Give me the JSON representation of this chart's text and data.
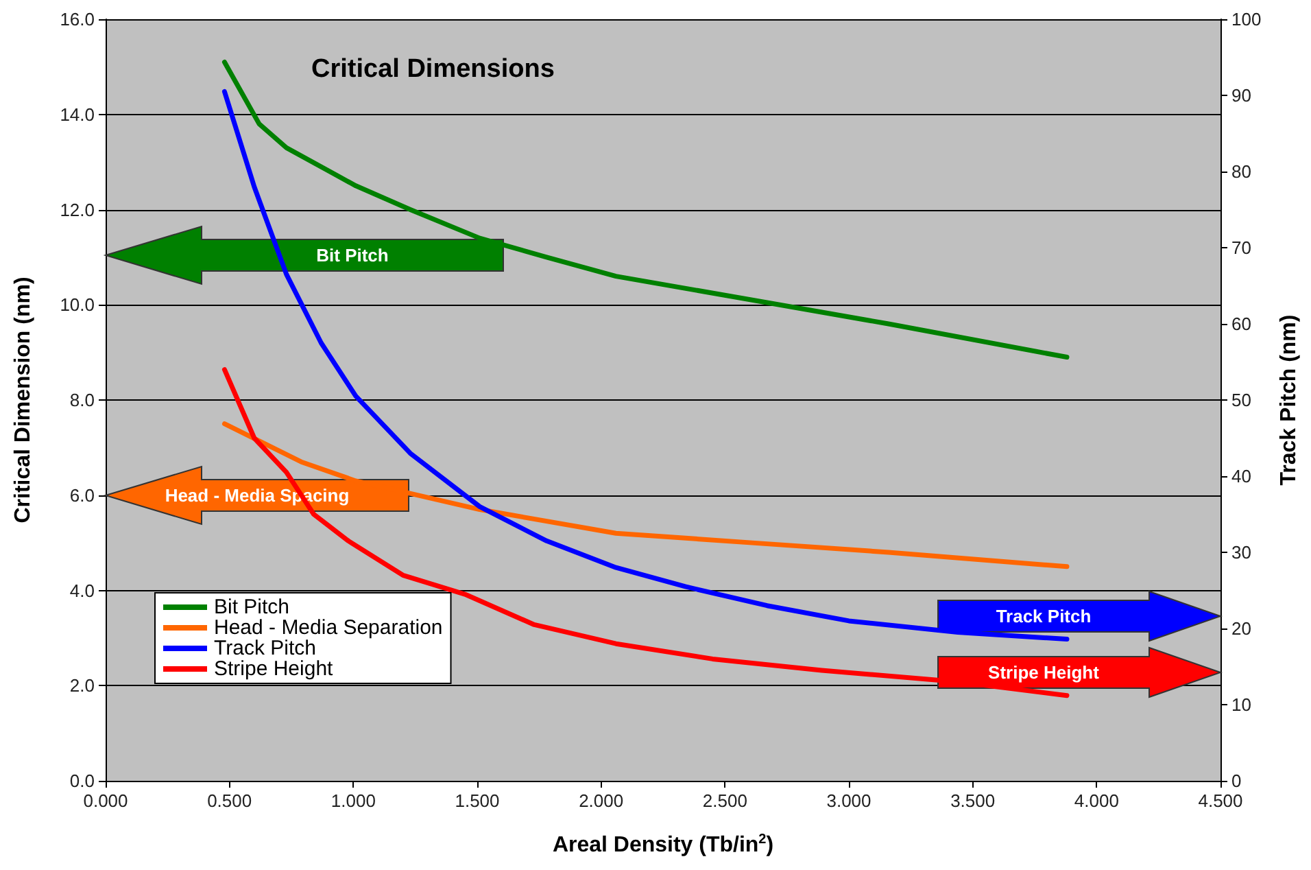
{
  "chart_data": {
    "type": "line",
    "title": "Critical Dimensions",
    "xlabel": "Areal Density (Tb/in$^{2}$)",
    "ylabel": "Critical Dimension (nm)",
    "y2label": "Track Pitch (nm)",
    "xlim": [
      0,
      4.5
    ],
    "xticks": [
      {
        "value": 0,
        "label": "0.000"
      },
      {
        "value": 0.5,
        "label": "0.500"
      },
      {
        "value": 1,
        "label": "1.000"
      },
      {
        "value": 1.5,
        "label": "1.500"
      },
      {
        "value": 2,
        "label": "2.000"
      },
      {
        "value": 2.5,
        "label": "2.500"
      },
      {
        "value": 3,
        "label": "3.000"
      },
      {
        "value": 3.5,
        "label": "3.500"
      },
      {
        "value": 4,
        "label": "4.000"
      },
      {
        "value": 4.5,
        "label": "4.500"
      }
    ],
    "ylim": [
      0,
      16
    ],
    "yticks": [
      {
        "value": 0,
        "label": "0.0"
      },
      {
        "value": 2,
        "label": "2.0"
      },
      {
        "value": 4,
        "label": "4.0"
      },
      {
        "value": 6,
        "label": "6.0"
      },
      {
        "value": 8,
        "label": "8.0"
      },
      {
        "value": 10,
        "label": "10.0"
      },
      {
        "value": 12,
        "label": "12.0"
      },
      {
        "value": 14,
        "label": "14.0"
      },
      {
        "value": 16,
        "label": "16.0"
      }
    ],
    "y2lim": [
      0,
      100
    ],
    "y2ticks": [
      0,
      10,
      20,
      30,
      40,
      50,
      60,
      70,
      80,
      90,
      100
    ],
    "grid": "y",
    "legend": "bottom left",
    "marker": "none",
    "line_style": "solid",
    "annotations": [
      "Bit Pitch",
      "Head - Media Spacing",
      "Track Pitch",
      "Stripe Height"
    ],
    "series": [
      {
        "name": "Bit Pitch",
        "color": "#008000",
        "x": [
          0.48,
          0.62,
          0.73,
          1.01,
          1.23,
          1.51,
          1.78,
          2.06,
          2.61,
          3.16,
          3.88
        ],
        "values": [
          15.1,
          13.8,
          13.3,
          12.5,
          12.0,
          11.4,
          11.0,
          10.6,
          10.1,
          9.6,
          8.9
        ]
      },
      {
        "name": "Head - Media Separation",
        "color": "#ff6600",
        "x": [
          0.48,
          0.79,
          1.01,
          1.51,
          2.06,
          2.61,
          3.16,
          3.88
        ],
        "values": [
          7.5,
          6.7,
          6.3,
          5.7,
          5.2,
          5.0,
          4.8,
          4.5
        ]
      },
      {
        "name": "Track Pitch",
        "color": "#0000ff",
        "axis": "y2",
        "x": [
          0.48,
          0.6,
          0.73,
          0.87,
          1.01,
          1.23,
          1.51,
          1.78,
          2.06,
          2.34,
          2.67,
          3.0,
          3.44,
          3.88
        ],
        "values": [
          90.5,
          78,
          66.5,
          57.5,
          50.5,
          43,
          36,
          31.5,
          28,
          25.5,
          23,
          21,
          19.5,
          18.6
        ]
      },
      {
        "name": "Stripe Height",
        "color": "#ff0000",
        "axis": "y2",
        "x": [
          0.48,
          0.6,
          0.73,
          0.84,
          0.98,
          1.2,
          1.45,
          1.73,
          2.06,
          2.45,
          2.89,
          3.44,
          3.88
        ],
        "values": [
          54,
          45,
          40.5,
          35,
          31.5,
          27,
          24.5,
          20.5,
          18,
          16,
          14.5,
          13,
          11.2
        ]
      }
    ]
  }
}
